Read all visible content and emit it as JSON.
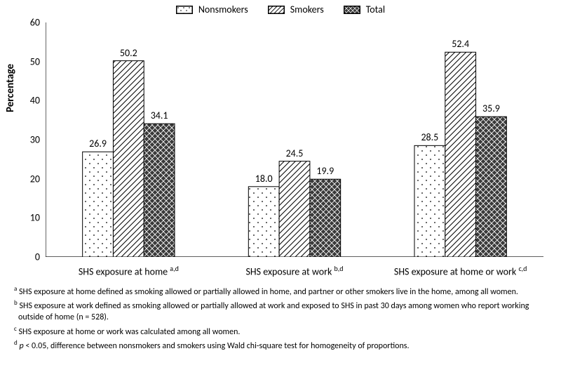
{
  "chart": {
    "type": "bar",
    "ylabel": "Percentage",
    "ylim": [
      0,
      60
    ],
    "ytick_step": 10,
    "yticks": [
      0,
      10,
      20,
      30,
      40,
      50,
      60
    ],
    "background_color": "#ffffff",
    "axis_color": "#000000",
    "bar_border_color": "#000000",
    "bar_width_ratio": 0.185,
    "group_gap_ratio": 0.25,
    "label_fontsize": 14,
    "title_fontsize": 15,
    "value_label_fontsize": 14,
    "legend_fontsize": 14,
    "series": [
      {
        "name": "Nonsmokers",
        "patternId": "pat-dots",
        "swatchBg": "#ffffff"
      },
      {
        "name": "Smokers",
        "patternId": "pat-diag",
        "swatchBg": "#ffffff"
      },
      {
        "name": "Total",
        "patternId": "pat-cross",
        "swatchBg": "#3a3a3a"
      }
    ],
    "categories": [
      {
        "label": "SHS exposure at home",
        "super": "a,d",
        "values": [
          26.9,
          50.2,
          34.1
        ]
      },
      {
        "label": "SHS exposure at work",
        "super": "b,d",
        "values": [
          18.0,
          24.5,
          19.9
        ]
      },
      {
        "label": "SHS exposure at home or work",
        "super": "c,d",
        "values": [
          28.5,
          52.4,
          35.9
        ]
      }
    ]
  },
  "footnotes": [
    {
      "super": "a",
      "text": "SHS exposure at home deﬁned as smoking allowed or partially allowed in home, and partner or other smokers live in the home, among all women."
    },
    {
      "super": "b",
      "text": "SHS exposure at work deﬁned as smoking allowed or partially allowed at work and exposed to SHS in past 30 days among women who report working outside of home (n = 528)."
    },
    {
      "super": "c",
      "text": "SHS exposure at home or work was calculated among all women."
    },
    {
      "super": "d",
      "text_html": "<i>p</i> < 0.05, diﬀerence between nonsmokers and smokers using Wald chi-square test for homogeneity of proportions."
    }
  ]
}
